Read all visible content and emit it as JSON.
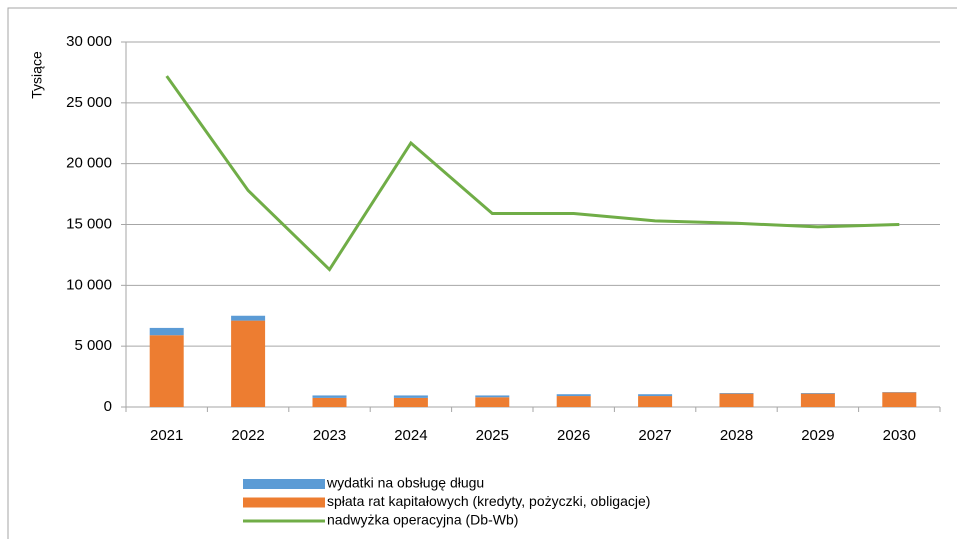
{
  "chart_data": {
    "type": "bar+line",
    "y_label": "Tysiące",
    "categories": [
      "2021",
      "2022",
      "2023",
      "2024",
      "2025",
      "2026",
      "2027",
      "2028",
      "2029",
      "2030"
    ],
    "series": [
      {
        "name": "wydatki na obsługę długu",
        "type": "bar",
        "color": "#5b9bd5",
        "values": [
          600,
          400,
          200,
          200,
          150,
          150,
          150,
          50,
          50,
          30
        ]
      },
      {
        "name": "spłata rat kapitałowych (kredyty, pożyczki, obligacje)",
        "type": "bar",
        "color": "#ed7d31",
        "values": [
          5900,
          7100,
          750,
          750,
          800,
          900,
          900,
          1100,
          1100,
          1200
        ]
      },
      {
        "name": "nadwyżka operacyjna (Db-Wb)",
        "type": "line",
        "color": "#70ad47",
        "values": [
          27200,
          17800,
          11300,
          21700,
          15900,
          15900,
          15300,
          15100,
          14800,
          15000
        ]
      }
    ],
    "stacked": true,
    "ylim": [
      0,
      30000
    ],
    "yticks": [
      0,
      {
        "value": 5000,
        "label": "5 000"
      },
      {
        "value": 10000,
        "label": "10 000"
      },
      {
        "value": 15000,
        "label": "15 000"
      },
      {
        "value": 20000,
        "label": "20 000"
      },
      {
        "value": 25000,
        "label": "25 000"
      },
      {
        "value": 30000,
        "label": "30 000"
      }
    ],
    "grid": true,
    "legend": "bottom"
  }
}
